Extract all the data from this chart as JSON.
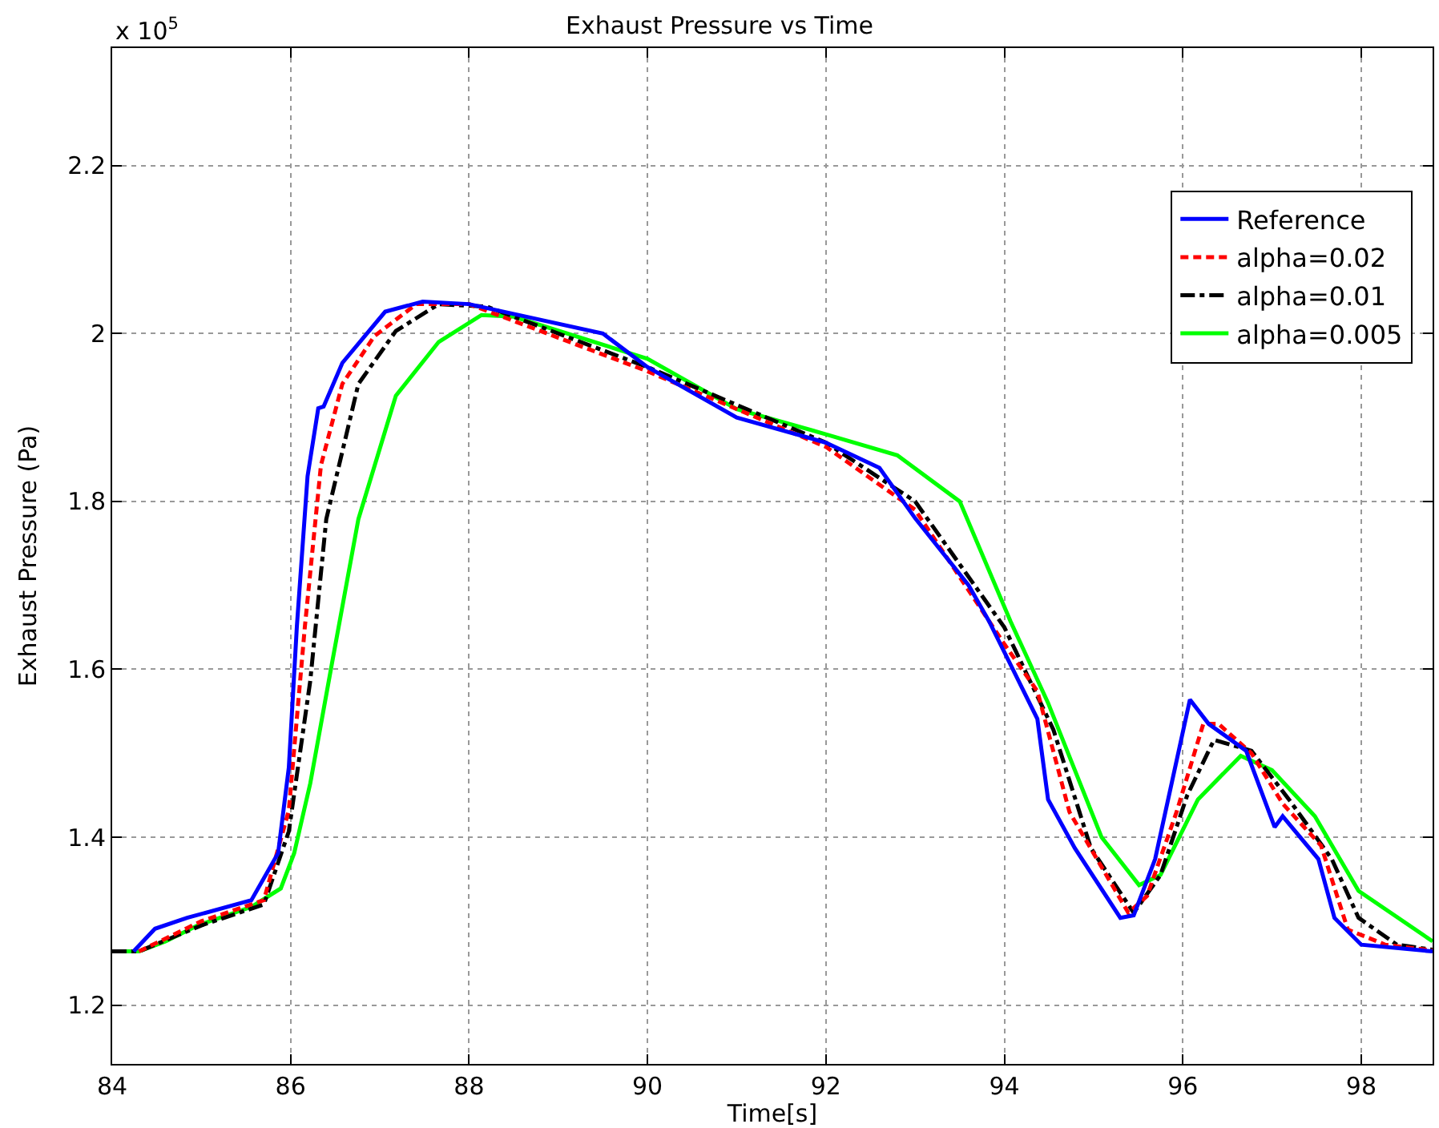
{
  "chart_data": {
    "type": "line",
    "title": "Exhaust Pressure vs Time",
    "xlabel": "Time[s]",
    "ylabel": "Exhaust Pressure (Pa)",
    "annotations": [
      "x 10$^{5}$"
    ],
    "xlim": [
      84,
      98.8
    ],
    "xticks": [
      84,
      86,
      88,
      90,
      92,
      94,
      96,
      98
    ],
    "ylim": [
      1.13,
      2.34
    ],
    "yticks": [
      1.2,
      1.4,
      1.6,
      1.8,
      2,
      2.2
    ],
    "grid": true,
    "legend": "top right",
    "series": [
      {
        "name": "Reference",
        "color": "#0000ff",
        "line_style": "solid",
        "x": [
          84.24,
          84.48,
          84.84,
          85.56,
          85.86,
          85.98,
          86.07,
          86.19,
          86.31,
          86.37,
          86.58,
          87.06,
          87.48,
          88.0,
          89.5,
          90,
          91,
          92,
          92.6,
          93,
          93.6,
          93.83,
          94.37,
          94.49,
          94.79,
          95.3,
          95.45,
          95.69,
          96.08,
          96.29,
          96.71,
          97.03,
          97.12,
          97.52,
          97.7,
          98.0,
          98.8
        ],
        "values": [
          1.264,
          1.291,
          1.304,
          1.325,
          1.381,
          1.483,
          1.651,
          1.83,
          1.911,
          1.913,
          1.965,
          2.026,
          2.038,
          2.035,
          2.0,
          1.96,
          1.9,
          1.87,
          1.84,
          1.78,
          1.7,
          1.657,
          1.541,
          1.445,
          1.387,
          1.304,
          1.307,
          1.374,
          1.564,
          1.535,
          1.503,
          1.412,
          1.425,
          1.374,
          1.304,
          1.272,
          1.264
        ]
      },
      {
        "name": "alpha=0.02",
        "color": "#ff0000",
        "line_style": "dashed",
        "x": [
          84.3,
          85.0,
          85.7,
          85.98,
          86.16,
          86.34,
          86.58,
          86.94,
          87.41,
          88.0,
          90,
          92,
          93,
          94,
          94.37,
          94.73,
          95.39,
          95.6,
          95.93,
          96.23,
          96.4,
          96.77,
          97.12,
          97.55,
          97.85,
          98.27,
          98.8
        ],
        "values": [
          1.264,
          1.3,
          1.325,
          1.432,
          1.651,
          1.843,
          1.94,
          1.997,
          2.035,
          2.035,
          1.955,
          1.865,
          1.79,
          1.63,
          1.574,
          1.43,
          1.31,
          1.33,
          1.43,
          1.535,
          1.535,
          1.5,
          1.44,
          1.39,
          1.29,
          1.272,
          1.265
        ]
      },
      {
        "name": "alpha=0.01",
        "color": "#000000",
        "line_style": "dashdot",
        "x": [
          84,
          84.3,
          85.0,
          85.7,
          85.98,
          86.22,
          86.4,
          86.76,
          87.18,
          87.66,
          88.2,
          90,
          92,
          93,
          94,
          94.55,
          94.97,
          95.45,
          95.75,
          96.05,
          96.35,
          96.77,
          97.19,
          97.67,
          97.97,
          98.4,
          98.8
        ],
        "values": [
          1.264,
          1.264,
          1.295,
          1.32,
          1.407,
          1.586,
          1.779,
          1.94,
          2.003,
          2.035,
          2.032,
          1.96,
          1.87,
          1.8,
          1.65,
          1.528,
          1.387,
          1.31,
          1.355,
          1.45,
          1.516,
          1.503,
          1.445,
          1.374,
          1.304,
          1.272,
          1.266
        ]
      },
      {
        "name": "alpha=0.005",
        "color": "#00ff00",
        "line_style": "solid",
        "x": [
          84,
          84.3,
          84.6,
          84.96,
          85.56,
          85.89,
          86.04,
          86.22,
          86.46,
          86.76,
          87.18,
          87.66,
          88.14,
          88.5,
          90,
          91,
          92,
          92.8,
          93.5,
          94.07,
          94.49,
          95.09,
          95.51,
          95.75,
          96.17,
          96.65,
          97.0,
          97.48,
          97.97,
          98.8
        ],
        "values": [
          1.264,
          1.264,
          1.276,
          1.295,
          1.317,
          1.339,
          1.381,
          1.464,
          1.605,
          1.779,
          1.926,
          1.99,
          2.022,
          2.02,
          1.97,
          1.91,
          1.88,
          1.855,
          1.8,
          1.657,
          1.56,
          1.4,
          1.343,
          1.355,
          1.445,
          1.497,
          1.48,
          1.425,
          1.336,
          1.276
        ]
      }
    ]
  }
}
